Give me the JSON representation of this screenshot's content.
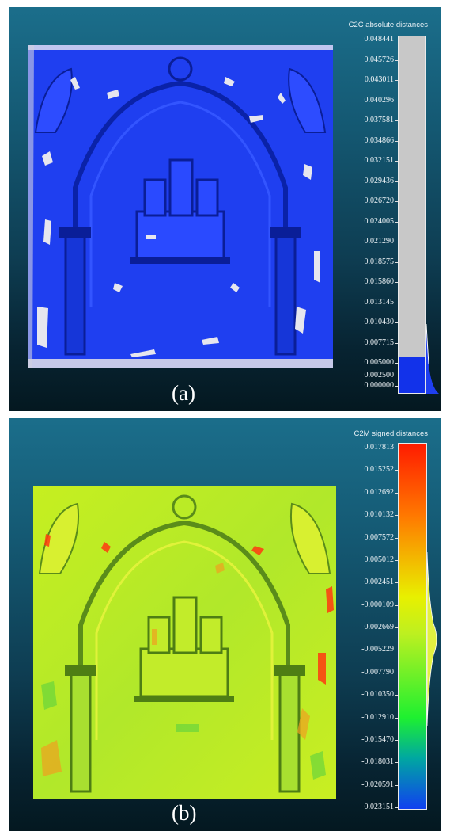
{
  "panels": [
    {
      "id": "a",
      "caption": "(a)",
      "scale_title": "C2C absolute distances",
      "scale_ticks": [
        "0.048441",
        "0.045726",
        "0.043011",
        "0.040296",
        "0.037581",
        "0.034866",
        "0.032151",
        "0.029436",
        "0.026720",
        "0.024005",
        "0.021290",
        "0.018575",
        "0.015860",
        "0.013145",
        "0.010430",
        "0.007715",
        "0.005000",
        "0.002500",
        "0.000000"
      ],
      "scale_min": 0,
      "scale_max": 0.048441,
      "color_threshold": 0.005,
      "colors": {
        "mesh": "#1f3ff0",
        "above_threshold": "#c8c8c8",
        "below_threshold": "#1232ea"
      }
    },
    {
      "id": "b",
      "caption": "(b)",
      "scale_title": "C2M signed distances",
      "scale_ticks": [
        "0.017813",
        "0.015252",
        "0.012692",
        "0.010132",
        "0.007572",
        "0.005012",
        "0.002451",
        "-0.000109",
        "-0.002669",
        "-0.005229",
        "-0.007790",
        "-0.010350",
        "-0.012910",
        "-0.015470",
        "-0.018031",
        "-0.020591",
        "-0.023151"
      ],
      "scale_min": -0.023151,
      "scale_max": 0.017813,
      "colors": {
        "mesh": "#b6ea2e",
        "high": "#ff1b00",
        "mid": "#e8f000",
        "zero": "#c6ef20",
        "low": "#1040f0"
      }
    }
  ]
}
